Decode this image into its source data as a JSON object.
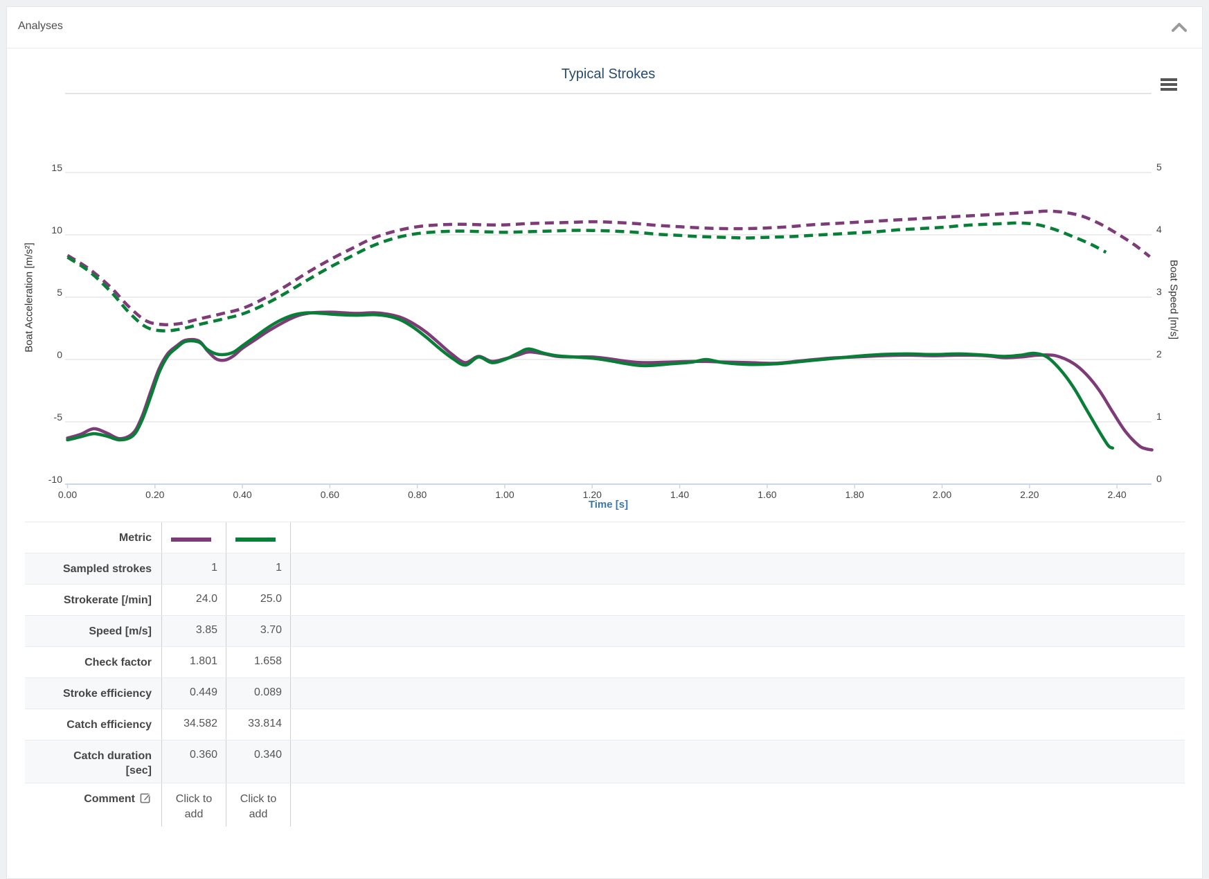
{
  "panel": {
    "title": "Analyses"
  },
  "chart": {
    "title": "Typical Strokes",
    "x_axis": {
      "title": "Time [s]",
      "ticks": [
        "0.00",
        "0.20",
        "0.40",
        "0.60",
        "0.80",
        "1.00",
        "1.20",
        "1.40",
        "1.60",
        "1.80",
        "2.00",
        "2.20",
        "2.40"
      ]
    },
    "y_left": {
      "title": "Boat Acceleration [m/s²]",
      "ticks": [
        "15",
        "10",
        "5",
        "0",
        "-5",
        "-10"
      ]
    },
    "y_right": {
      "title": "Boat Speed [m/s]",
      "ticks": [
        "5",
        "4",
        "3",
        "2",
        "1",
        "0"
      ]
    },
    "colors": {
      "purple": "#7d3c78",
      "green": "#087f36",
      "grid": "#d8d8d8",
      "axis_line": "#ccd6eb",
      "title_blue": "#274b6d",
      "time_blue": "#3a77ae"
    }
  },
  "chart_data": {
    "type": "line",
    "title": "Typical Strokes",
    "xlabel": "Time [s]",
    "ylabel_left": "Boat Acceleration [m/s²]",
    "ylabel_right": "Boat Speed [m/s]",
    "xlim": [
      0,
      2.475
    ],
    "ylim_left": [
      -10,
      15
    ],
    "ylim_right": [
      0,
      5
    ],
    "grid": true,
    "legend": "none",
    "series": [
      {
        "name": "Stroke 1 acceleration",
        "axis": "left",
        "color": "#7d3c78",
        "dashed": false,
        "points": [
          [
            0,
            -6.3
          ],
          [
            0.03,
            -6.0
          ],
          [
            0.06,
            -5.55
          ],
          [
            0.09,
            -5.9
          ],
          [
            0.12,
            -6.35
          ],
          [
            0.15,
            -5.9
          ],
          [
            0.17,
            -4.6
          ],
          [
            0.19,
            -2.6
          ],
          [
            0.21,
            -0.7
          ],
          [
            0.23,
            0.5
          ],
          [
            0.25,
            1.1
          ],
          [
            0.27,
            1.55
          ],
          [
            0.3,
            1.5
          ],
          [
            0.32,
            0.7
          ],
          [
            0.34,
            0.05
          ],
          [
            0.36,
            -0.05
          ],
          [
            0.38,
            0.3
          ],
          [
            0.4,
            0.9
          ],
          [
            0.43,
            1.6
          ],
          [
            0.46,
            2.3
          ],
          [
            0.5,
            3.1
          ],
          [
            0.53,
            3.55
          ],
          [
            0.56,
            3.75
          ],
          [
            0.6,
            3.8
          ],
          [
            0.63,
            3.75
          ],
          [
            0.66,
            3.7
          ],
          [
            0.7,
            3.75
          ],
          [
            0.73,
            3.65
          ],
          [
            0.76,
            3.4
          ],
          [
            0.79,
            2.9
          ],
          [
            0.82,
            2.2
          ],
          [
            0.85,
            1.3
          ],
          [
            0.88,
            0.4
          ],
          [
            0.91,
            -0.25
          ],
          [
            0.94,
            0.25
          ],
          [
            0.97,
            -0.15
          ],
          [
            1.0,
            0.05
          ],
          [
            1.03,
            0.35
          ],
          [
            1.055,
            0.6
          ],
          [
            1.09,
            0.45
          ],
          [
            1.12,
            0.25
          ],
          [
            1.16,
            0.2
          ],
          [
            1.2,
            0.2
          ],
          [
            1.24,
            0.05
          ],
          [
            1.28,
            -0.15
          ],
          [
            1.32,
            -0.25
          ],
          [
            1.38,
            -0.2
          ],
          [
            1.44,
            -0.15
          ],
          [
            1.5,
            -0.2
          ],
          [
            1.56,
            -0.25
          ],
          [
            1.62,
            -0.3
          ],
          [
            1.68,
            -0.1
          ],
          [
            1.74,
            0.1
          ],
          [
            1.8,
            0.2
          ],
          [
            1.86,
            0.3
          ],
          [
            1.92,
            0.35
          ],
          [
            1.98,
            0.3
          ],
          [
            2.04,
            0.35
          ],
          [
            2.1,
            0.3
          ],
          [
            2.14,
            0.15
          ],
          [
            2.18,
            0.2
          ],
          [
            2.22,
            0.35
          ],
          [
            2.26,
            0.3
          ],
          [
            2.3,
            -0.3
          ],
          [
            2.33,
            -1.2
          ],
          [
            2.36,
            -2.5
          ],
          [
            2.39,
            -4.2
          ],
          [
            2.42,
            -5.8
          ],
          [
            2.45,
            -6.9
          ],
          [
            2.465,
            -7.15
          ],
          [
            2.48,
            -7.25
          ]
        ]
      },
      {
        "name": "Stroke 2 acceleration",
        "axis": "left",
        "color": "#087f36",
        "dashed": false,
        "points": [
          [
            0,
            -6.45
          ],
          [
            0.03,
            -6.2
          ],
          [
            0.06,
            -5.95
          ],
          [
            0.09,
            -6.15
          ],
          [
            0.12,
            -6.45
          ],
          [
            0.15,
            -6.1
          ],
          [
            0.17,
            -4.9
          ],
          [
            0.19,
            -3.0
          ],
          [
            0.21,
            -1.0
          ],
          [
            0.23,
            0.3
          ],
          [
            0.25,
            0.95
          ],
          [
            0.27,
            1.45
          ],
          [
            0.3,
            1.4
          ],
          [
            0.32,
            0.8
          ],
          [
            0.34,
            0.45
          ],
          [
            0.36,
            0.4
          ],
          [
            0.38,
            0.6
          ],
          [
            0.4,
            1.1
          ],
          [
            0.43,
            1.85
          ],
          [
            0.46,
            2.6
          ],
          [
            0.49,
            3.2
          ],
          [
            0.52,
            3.6
          ],
          [
            0.55,
            3.75
          ],
          [
            0.58,
            3.7
          ],
          [
            0.62,
            3.6
          ],
          [
            0.66,
            3.55
          ],
          [
            0.7,
            3.6
          ],
          [
            0.73,
            3.5
          ],
          [
            0.76,
            3.2
          ],
          [
            0.79,
            2.6
          ],
          [
            0.82,
            1.8
          ],
          [
            0.85,
            0.9
          ],
          [
            0.88,
            0.1
          ],
          [
            0.91,
            -0.45
          ],
          [
            0.94,
            0.2
          ],
          [
            0.97,
            -0.25
          ],
          [
            1.0,
            0.0
          ],
          [
            1.03,
            0.5
          ],
          [
            1.055,
            0.85
          ],
          [
            1.09,
            0.5
          ],
          [
            1.12,
            0.3
          ],
          [
            1.16,
            0.2
          ],
          [
            1.2,
            0.1
          ],
          [
            1.24,
            -0.1
          ],
          [
            1.28,
            -0.35
          ],
          [
            1.32,
            -0.5
          ],
          [
            1.38,
            -0.35
          ],
          [
            1.43,
            -0.2
          ],
          [
            1.46,
            0.0
          ],
          [
            1.5,
            -0.25
          ],
          [
            1.56,
            -0.4
          ],
          [
            1.62,
            -0.35
          ],
          [
            1.68,
            -0.15
          ],
          [
            1.74,
            0.05
          ],
          [
            1.8,
            0.25
          ],
          [
            1.86,
            0.4
          ],
          [
            1.92,
            0.45
          ],
          [
            1.98,
            0.4
          ],
          [
            2.04,
            0.45
          ],
          [
            2.1,
            0.35
          ],
          [
            2.14,
            0.25
          ],
          [
            2.18,
            0.35
          ],
          [
            2.21,
            0.5
          ],
          [
            2.24,
            0.2
          ],
          [
            2.27,
            -0.8
          ],
          [
            2.3,
            -2.2
          ],
          [
            2.33,
            -4.0
          ],
          [
            2.36,
            -5.8
          ],
          [
            2.38,
            -6.9
          ],
          [
            2.39,
            -7.1
          ]
        ]
      },
      {
        "name": "Stroke 1 speed",
        "axis": "right",
        "color": "#7d3c78",
        "dashed": true,
        "points": [
          [
            0,
            3.67
          ],
          [
            0.05,
            3.45
          ],
          [
            0.1,
            3.15
          ],
          [
            0.14,
            2.85
          ],
          [
            0.18,
            2.62
          ],
          [
            0.22,
            2.56
          ],
          [
            0.26,
            2.58
          ],
          [
            0.3,
            2.65
          ],
          [
            0.35,
            2.73
          ],
          [
            0.4,
            2.82
          ],
          [
            0.45,
            2.98
          ],
          [
            0.5,
            3.18
          ],
          [
            0.55,
            3.4
          ],
          [
            0.6,
            3.6
          ],
          [
            0.65,
            3.78
          ],
          [
            0.7,
            3.95
          ],
          [
            0.75,
            4.06
          ],
          [
            0.8,
            4.13
          ],
          [
            0.85,
            4.16
          ],
          [
            0.9,
            4.17
          ],
          [
            0.95,
            4.16
          ],
          [
            1.0,
            4.16
          ],
          [
            1.05,
            4.18
          ],
          [
            1.1,
            4.19
          ],
          [
            1.15,
            4.2
          ],
          [
            1.2,
            4.21
          ],
          [
            1.25,
            4.2
          ],
          [
            1.3,
            4.18
          ],
          [
            1.35,
            4.15
          ],
          [
            1.4,
            4.13
          ],
          [
            1.45,
            4.11
          ],
          [
            1.5,
            4.1
          ],
          [
            1.55,
            4.1
          ],
          [
            1.6,
            4.11
          ],
          [
            1.65,
            4.13
          ],
          [
            1.7,
            4.16
          ],
          [
            1.75,
            4.18
          ],
          [
            1.8,
            4.2
          ],
          [
            1.85,
            4.22
          ],
          [
            1.9,
            4.24
          ],
          [
            1.95,
            4.26
          ],
          [
            2.0,
            4.28
          ],
          [
            2.05,
            4.3
          ],
          [
            2.1,
            4.32
          ],
          [
            2.15,
            4.34
          ],
          [
            2.2,
            4.36
          ],
          [
            2.24,
            4.38
          ],
          [
            2.28,
            4.36
          ],
          [
            2.32,
            4.3
          ],
          [
            2.36,
            4.18
          ],
          [
            2.4,
            4.02
          ],
          [
            2.44,
            3.84
          ],
          [
            2.475,
            3.65
          ]
        ]
      },
      {
        "name": "Stroke 2 speed",
        "axis": "right",
        "color": "#087f36",
        "dashed": true,
        "points": [
          [
            0,
            3.64
          ],
          [
            0.05,
            3.41
          ],
          [
            0.1,
            3.08
          ],
          [
            0.14,
            2.76
          ],
          [
            0.18,
            2.52
          ],
          [
            0.22,
            2.46
          ],
          [
            0.26,
            2.49
          ],
          [
            0.3,
            2.56
          ],
          [
            0.35,
            2.64
          ],
          [
            0.4,
            2.73
          ],
          [
            0.45,
            2.88
          ],
          [
            0.5,
            3.07
          ],
          [
            0.55,
            3.28
          ],
          [
            0.6,
            3.48
          ],
          [
            0.65,
            3.66
          ],
          [
            0.7,
            3.83
          ],
          [
            0.75,
            3.95
          ],
          [
            0.8,
            4.02
          ],
          [
            0.85,
            4.05
          ],
          [
            0.9,
            4.06
          ],
          [
            0.95,
            4.05
          ],
          [
            1.0,
            4.04
          ],
          [
            1.05,
            4.05
          ],
          [
            1.1,
            4.06
          ],
          [
            1.15,
            4.07
          ],
          [
            1.2,
            4.07
          ],
          [
            1.25,
            4.06
          ],
          [
            1.3,
            4.04
          ],
          [
            1.35,
            4.01
          ],
          [
            1.4,
            3.99
          ],
          [
            1.45,
            3.97
          ],
          [
            1.5,
            3.96
          ],
          [
            1.55,
            3.95
          ],
          [
            1.6,
            3.96
          ],
          [
            1.65,
            3.97
          ],
          [
            1.7,
            3.99
          ],
          [
            1.75,
            4.01
          ],
          [
            1.8,
            4.03
          ],
          [
            1.85,
            4.05
          ],
          [
            1.9,
            4.08
          ],
          [
            1.95,
            4.1
          ],
          [
            2.0,
            4.12
          ],
          [
            2.05,
            4.15
          ],
          [
            2.1,
            4.17
          ],
          [
            2.14,
            4.18
          ],
          [
            2.18,
            4.19
          ],
          [
            2.22,
            4.16
          ],
          [
            2.26,
            4.08
          ],
          [
            2.3,
            3.97
          ],
          [
            2.34,
            3.85
          ],
          [
            2.375,
            3.72
          ]
        ]
      }
    ]
  },
  "table": {
    "rows": [
      {
        "label": "Metric",
        "type": "swatches",
        "swatches": [
          "#7d3c78",
          "#087f36"
        ]
      },
      {
        "label": "Sampled strokes",
        "values": [
          "1",
          "1"
        ]
      },
      {
        "label": "Strokerate [/min]",
        "values": [
          "24.0",
          "25.0"
        ]
      },
      {
        "label": "Speed [m/s]",
        "values": [
          "3.85",
          "3.70"
        ]
      },
      {
        "label": "Check factor",
        "values": [
          "1.801",
          "1.658"
        ]
      },
      {
        "label": "Stroke efficiency",
        "values": [
          "0.449",
          "0.089"
        ]
      },
      {
        "label": "Catch efficiency",
        "values": [
          "34.582",
          "33.814"
        ]
      },
      {
        "label": "Catch duration\n[sec]",
        "values": [
          "0.360",
          "0.340"
        ],
        "tall": true
      },
      {
        "label": "Comment",
        "type": "comment",
        "values": [
          "Click to add",
          "Click to add"
        ]
      }
    ]
  }
}
